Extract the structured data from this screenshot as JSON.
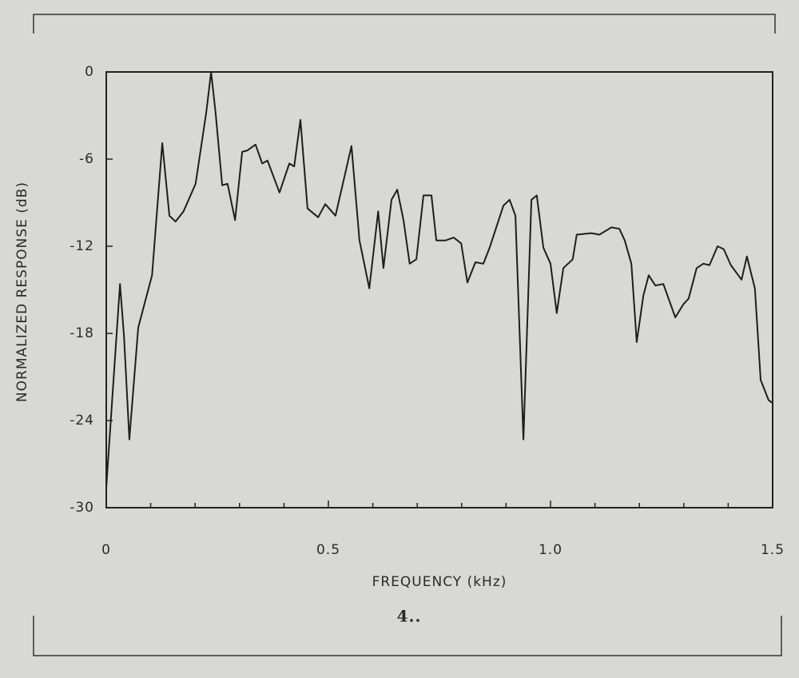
{
  "chart_data": {
    "type": "line",
    "caption": "4..",
    "x_label": "FREQUENCY (kHz)",
    "y_label": "NORMALIZED RESPONSE (dB)",
    "x": [
      0.0,
      0.031,
      0.04,
      0.052,
      0.072,
      0.103,
      0.126,
      0.142,
      0.156,
      0.174,
      0.201,
      0.225,
      0.236,
      0.246,
      0.261,
      0.273,
      0.29,
      0.306,
      0.318,
      0.336,
      0.351,
      0.363,
      0.39,
      0.412,
      0.423,
      0.437,
      0.453,
      0.477,
      0.493,
      0.516,
      0.552,
      0.57,
      0.592,
      0.612,
      0.624,
      0.642,
      0.655,
      0.669,
      0.683,
      0.698,
      0.714,
      0.732,
      0.743,
      0.764,
      0.782,
      0.799,
      0.813,
      0.831,
      0.849,
      0.863,
      0.894,
      0.908,
      0.921,
      0.939,
      0.957,
      0.969,
      0.984,
      1.0,
      1.014,
      1.029,
      1.05,
      1.059,
      1.092,
      1.11,
      1.137,
      1.155,
      1.167,
      1.182,
      1.194,
      1.209,
      1.221,
      1.236,
      1.254,
      1.281,
      1.299,
      1.311,
      1.329,
      1.344,
      1.358,
      1.376,
      1.39,
      1.406,
      1.43,
      1.442,
      1.46,
      1.473,
      1.491,
      1.5
    ],
    "values": [
      -28.6,
      -14.6,
      -18.2,
      -25.3,
      -17.6,
      -14.0,
      -4.9,
      -9.9,
      -10.3,
      -9.6,
      -7.7,
      -2.8,
      0.0,
      -2.8,
      -7.8,
      -7.7,
      -10.2,
      -5.5,
      -5.4,
      -5.0,
      -6.3,
      -6.1,
      -8.3,
      -6.3,
      -6.5,
      -3.3,
      -9.4,
      -10.0,
      -9.1,
      -9.9,
      -5.1,
      -11.6,
      -14.9,
      -9.6,
      -13.5,
      -8.8,
      -8.1,
      -10.2,
      -13.2,
      -12.9,
      -8.5,
      -8.5,
      -11.6,
      -11.6,
      -11.4,
      -11.8,
      -14.5,
      -13.1,
      -13.2,
      -12.1,
      -9.2,
      -8.8,
      -9.9,
      -25.3,
      -8.8,
      -8.5,
      -12.1,
      -13.2,
      -16.6,
      -13.5,
      -12.9,
      -11.2,
      -11.1,
      -11.2,
      -10.7,
      -10.8,
      -11.6,
      -13.2,
      -18.6,
      -15.4,
      -14.0,
      -14.7,
      -14.6,
      -16.9,
      -16.0,
      -15.6,
      -13.5,
      -13.2,
      -13.3,
      -12.0,
      -12.2,
      -13.3,
      -14.3,
      -12.7,
      -14.9,
      -21.2,
      -22.6,
      -22.8
    ],
    "color": "#1e1e1e",
    "xlim": [
      0,
      1.5
    ],
    "ylim": [
      -30,
      0
    ],
    "xticks": [
      0,
      0.5,
      {
        "value": 1,
        "label": "1.0"
      },
      1.5
    ],
    "xminorticks": [
      0.1,
      0.2,
      0.3,
      0.4,
      0.6,
      0.7,
      0.8,
      0.9,
      1.1,
      1.2,
      1.3,
      1.4
    ],
    "yticks": [
      0,
      -6,
      -12,
      -18,
      -24,
      -30
    ]
  }
}
